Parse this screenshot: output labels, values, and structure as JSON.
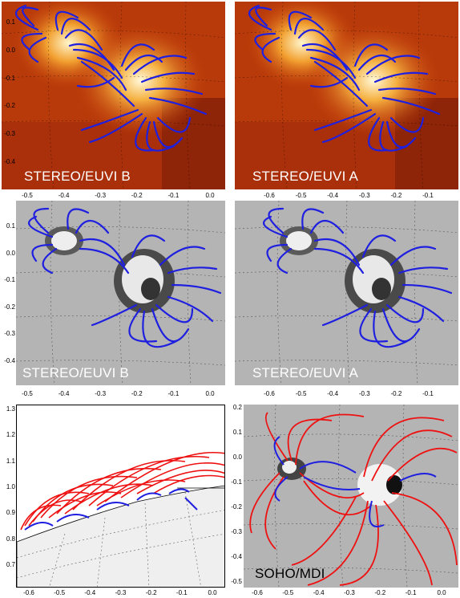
{
  "panels": [
    {
      "label": "STEREO/EUVI B",
      "xticks": [
        "-0.5",
        "-0.4",
        "-0.3",
        "-0.2",
        "-0.1",
        "0.0"
      ],
      "yticks": [
        "0.1",
        "0.0",
        "-0.1",
        "-0.2",
        "-0.3",
        "-0.4"
      ]
    },
    {
      "label": "STEREO/EUVI A",
      "xticks": [
        "-0.6",
        "-0.5",
        "-0.4",
        "-0.3",
        "-0.2",
        "-0.1"
      ],
      "yticks": []
    },
    {
      "label": "STEREO/EUVI B",
      "xticks": [
        "-0.5",
        "-0.4",
        "-0.3",
        "-0.2",
        "-0.1",
        "0.0"
      ],
      "yticks": [
        "0.1",
        "0.0",
        "-0.1",
        "-0.2",
        "-0.3",
        "-0.4"
      ]
    },
    {
      "label": "STEREO/EUVI A",
      "xticks": [
        "-0.6",
        "-0.5",
        "-0.4",
        "-0.3",
        "-0.2",
        "-0.1"
      ],
      "yticks": []
    },
    {
      "label": "",
      "xticks": [
        "-0.6",
        "-0.5",
        "-0.4",
        "-0.3",
        "-0.2",
        "-0.1",
        "0.0"
      ],
      "yticks": [
        "1.3",
        "1.2",
        "1.1",
        "1.0",
        "0.9",
        "0.8",
        "0.7"
      ]
    },
    {
      "label": "SOHO/MDI",
      "xticks": [
        "-0.6",
        "-0.5",
        "-0.4",
        "-0.3",
        "-0.2",
        "-0.1",
        "0.0"
      ],
      "yticks": [
        "0.2",
        "0.1",
        "0.0",
        "-0.1",
        "-0.2",
        "-0.3",
        "-0.4",
        "-0.5"
      ]
    }
  ],
  "colors": {
    "field_lines_blue": "#1f1fe0",
    "field_lines_red": "#ee1111",
    "euvi_bright": "#fff2c0",
    "euvi_dark": "#8a1a00",
    "magnetogram_bg": "#b4b4b4"
  }
}
